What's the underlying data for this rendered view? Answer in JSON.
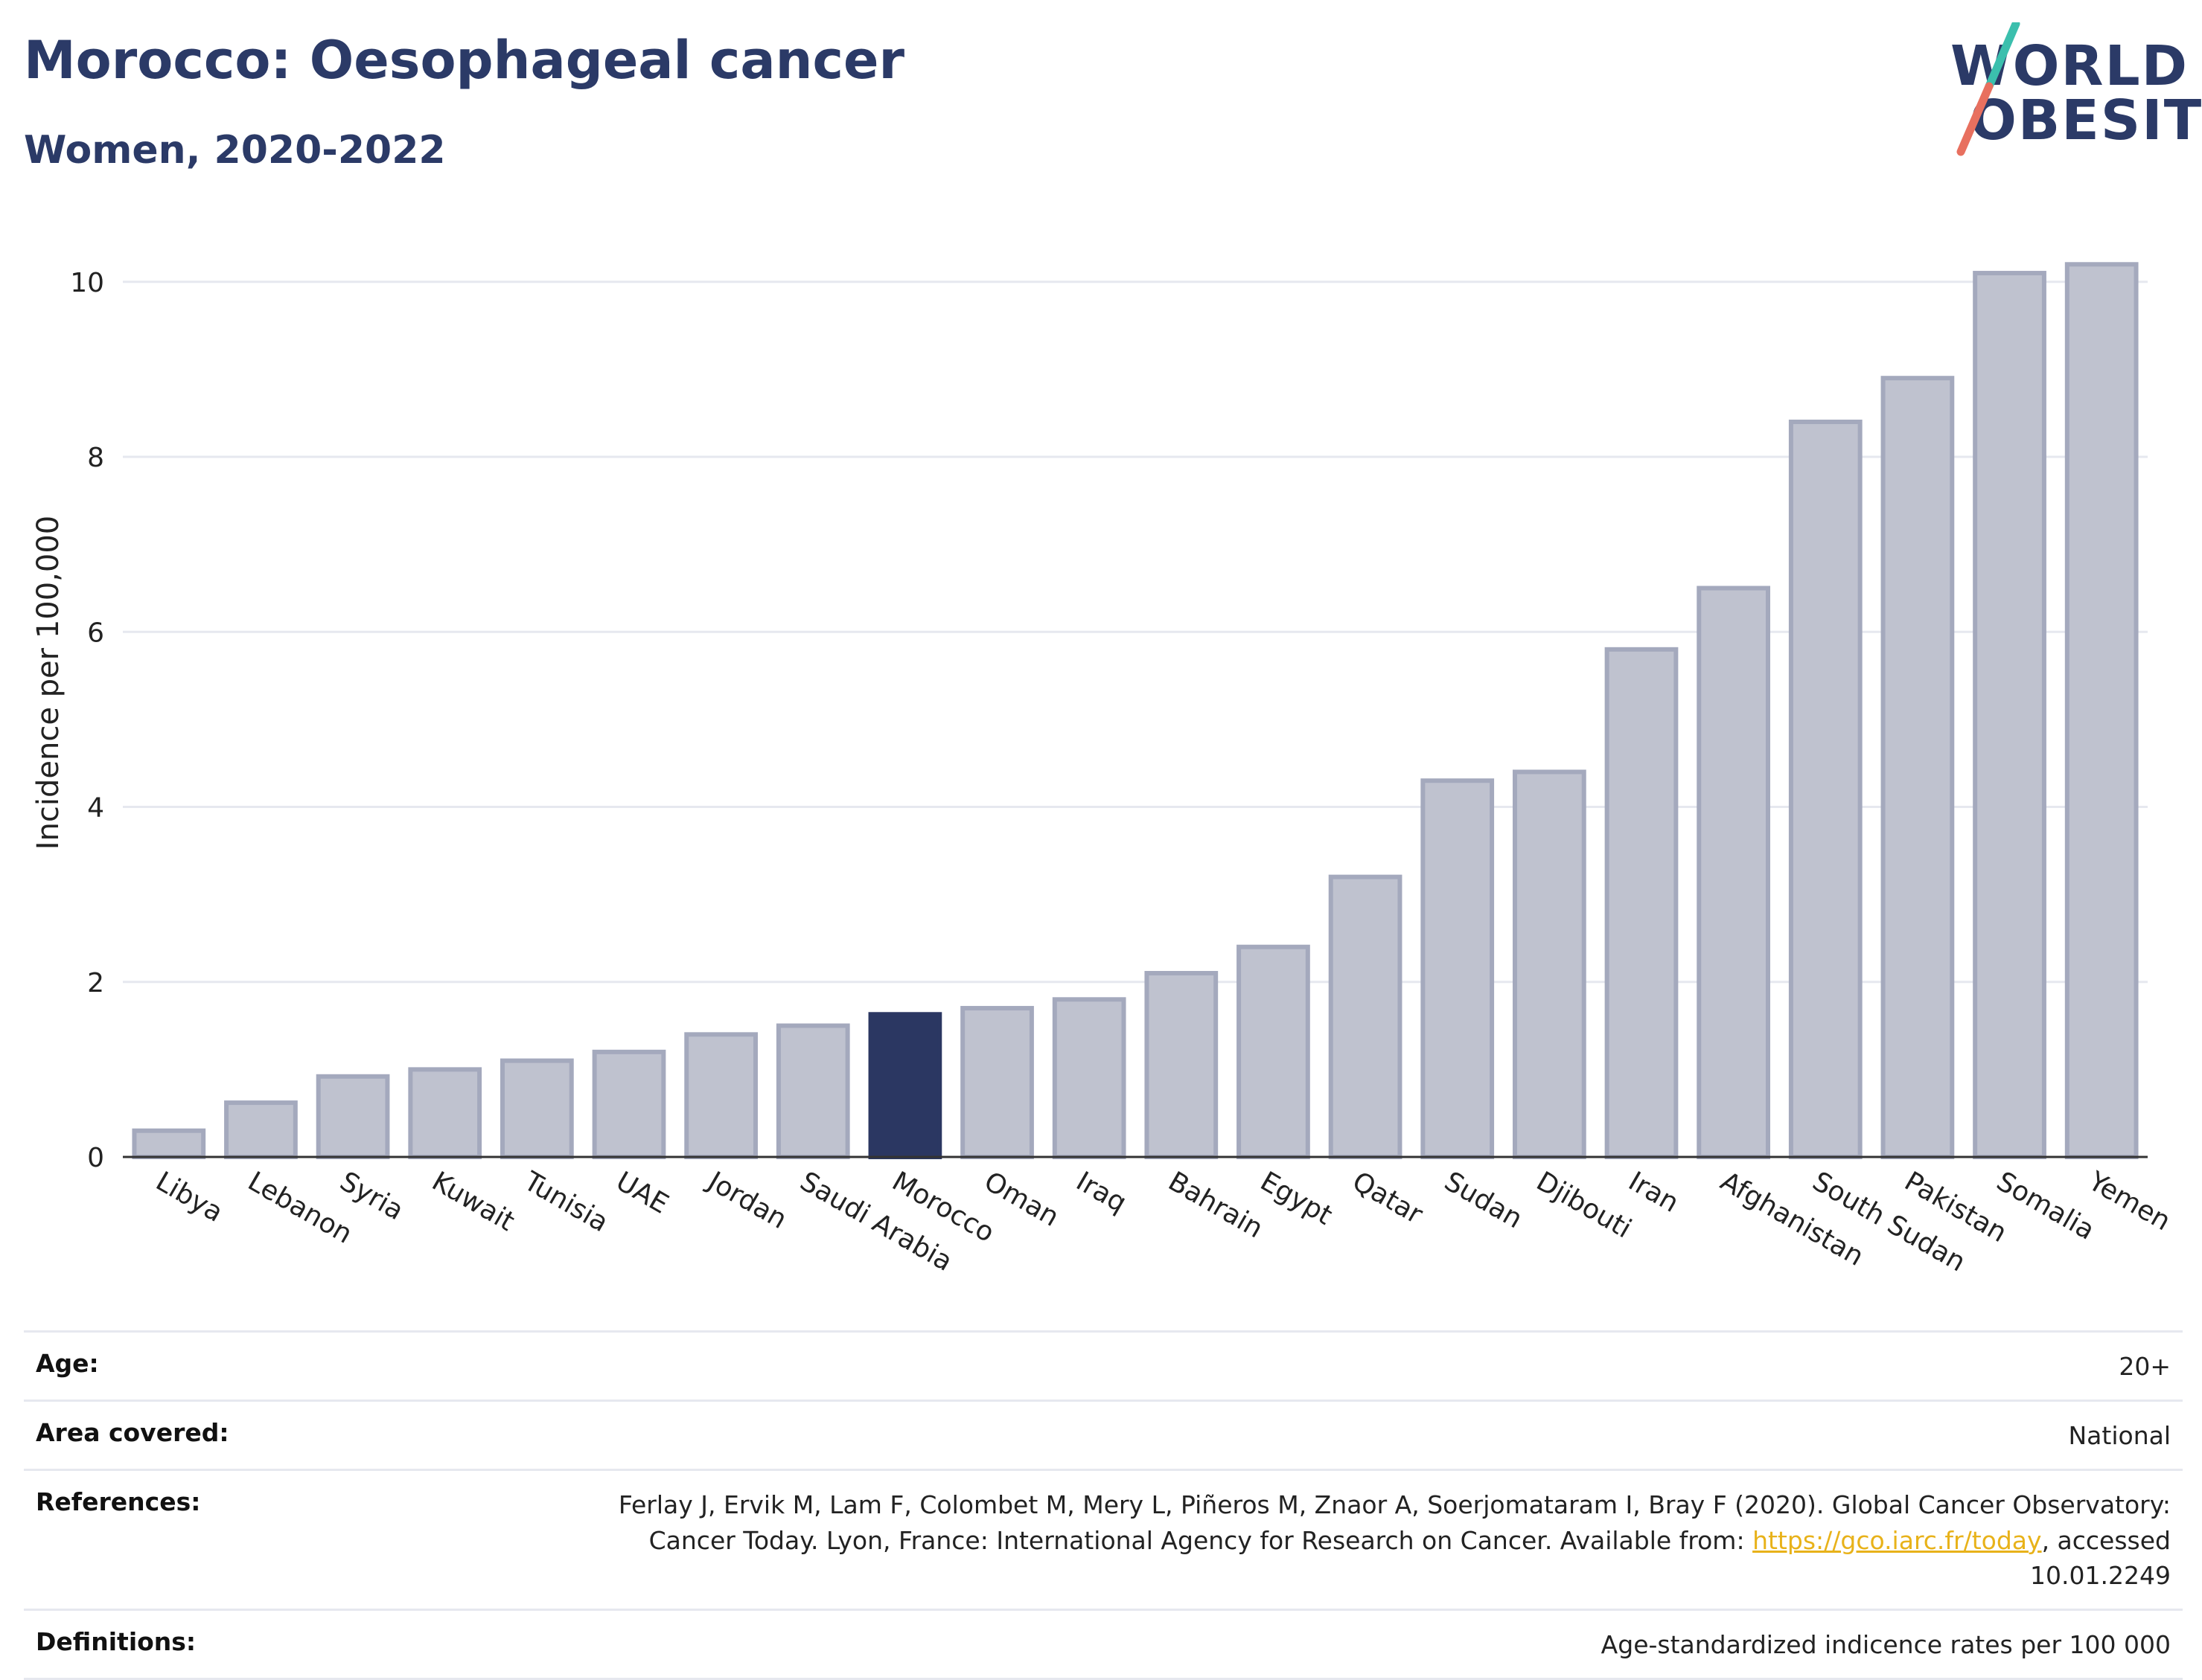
{
  "header": {
    "title": "Morocco: Oesophageal cancer",
    "subtitle": "Women, 2020-2022"
  },
  "logo": {
    "line1": "WORLD",
    "line2": "OBESITY"
  },
  "colors": {
    "highlight": "#2b3762",
    "bar_fill": "#bfc2cf",
    "bar_stroke": "#a4a9bd",
    "accent_teal": "#3bbfad",
    "accent_red": "#e8705f"
  },
  "chart_data": {
    "type": "bar",
    "categories": [
      "Libya",
      "Lebanon",
      "Syria",
      "Kuwait",
      "Tunisia",
      "UAE",
      "Jordan",
      "Saudi Arabia",
      "Morocco",
      "Oman",
      "Iraq",
      "Bahrain",
      "Egypt",
      "Qatar",
      "Sudan",
      "Djibouti",
      "Iran",
      "Afghanistan",
      "South Sudan",
      "Pakistan",
      "Somalia",
      "Yemen"
    ],
    "values": [
      0.3,
      0.62,
      0.92,
      1.0,
      1.1,
      1.2,
      1.4,
      1.5,
      1.63,
      1.7,
      1.8,
      2.1,
      2.4,
      3.2,
      4.3,
      4.4,
      5.8,
      6.5,
      8.4,
      8.9,
      10.1,
      10.2
    ],
    "highlight": "Morocco",
    "ylabel": "Incidence per 100,000",
    "ylim": [
      0,
      10.5
    ],
    "yticks": [
      0,
      2,
      4,
      6,
      8,
      10
    ],
    "grid": true
  },
  "metadata": [
    {
      "label": "Age:",
      "value": "20+"
    },
    {
      "label": "Area covered:",
      "value": "National"
    },
    {
      "label": "References:",
      "value_before": "Ferlay J, Ervik M, Lam F, Colombet M, Mery L, Piñeros M, Znaor A, Soerjomataram I, Bray F (2020). Global Cancer Observatory: Cancer Today. Lyon, France: International Agency for Research on Cancer. Available from: ",
      "link": "https://gco.iarc.fr/today",
      "value_after": ", accessed 10.01.2249"
    },
    {
      "label": "Definitions:",
      "value": "Age-standardized indicence rates per 100 000"
    }
  ]
}
